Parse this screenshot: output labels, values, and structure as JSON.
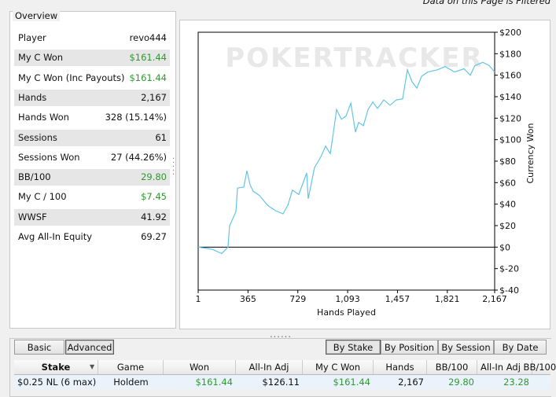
{
  "header_note": "Data on this Page is Filtered",
  "overview": {
    "title": "Overview",
    "value_color": "#2e9a2e",
    "rows": [
      {
        "label": "Player",
        "value": "revo444"
      },
      {
        "label": "My C Won",
        "value": "$161.44",
        "green": true
      },
      {
        "label": "My C Won (Inc Payouts)",
        "value": "$161.44",
        "green": true
      },
      {
        "label": "Hands",
        "value": "2,167"
      },
      {
        "label": "Hands Won",
        "value": "328 (15.14%)"
      },
      {
        "label": "Sessions",
        "value": "61"
      },
      {
        "label": "Sessions Won",
        "value": "27 (44.26%)"
      },
      {
        "label": "BB/100",
        "value": "29.80",
        "green": true
      },
      {
        "label": "My C / 100",
        "value": "$7.45",
        "green": true
      },
      {
        "label": "WWSF",
        "value": "41.92"
      },
      {
        "label": "Avg All-In Equity",
        "value": "69.27"
      }
    ]
  },
  "chart_data": {
    "type": "line",
    "watermark": "POKERTRACKER",
    "xlabel": "Hands Played",
    "ylabel": "Currency Won",
    "xlim": [
      1,
      2167
    ],
    "ylim": [
      -40,
      200
    ],
    "xticks": [
      1,
      365,
      729,
      {
        "value": 1093,
        "label": "1,093"
      },
      {
        "value": 1457,
        "label": "1,457"
      },
      {
        "value": 1821,
        "label": "1,821"
      },
      {
        "value": 2167,
        "label": "2,167"
      }
    ],
    "yticks": [
      {
        "value": 200,
        "label": "$200"
      },
      {
        "value": 180,
        "label": "$180"
      },
      {
        "value": 160,
        "label": "$160"
      },
      {
        "value": 140,
        "label": "$140"
      },
      {
        "value": 120,
        "label": "$120"
      },
      {
        "value": 100,
        "label": "$100"
      },
      {
        "value": 80,
        "label": "$80"
      },
      {
        "value": 60,
        "label": "$60"
      },
      {
        "value": 40,
        "label": "$40"
      },
      {
        "value": 20,
        "label": "$20"
      },
      {
        "value": 0,
        "label": "$0"
      },
      {
        "value": -20,
        "label": "$-20"
      },
      {
        "value": -40,
        "label": "$-40"
      }
    ],
    "x": [
      1,
      104,
      173,
      219,
      231,
      277,
      288,
      334,
      357,
      380,
      403,
      449,
      507,
      564,
      621,
      656,
      690,
      736,
      794,
      805,
      851,
      897,
      932,
      966,
      989,
      1012,
      1047,
      1081,
      1116,
      1150,
      1173,
      1208,
      1242,
      1277,
      1311,
      1357,
      1403,
      1449,
      1495,
      1529,
      1563,
      1598,
      1633,
      1679,
      1748,
      1805,
      1874,
      1943,
      1989,
      2023,
      2081,
      2127,
      2167
    ],
    "series": [
      {
        "color": "#63c5e6",
        "values": [
          0,
          -2,
          -6,
          0,
          20,
          33,
          55,
          56,
          71,
          58,
          52,
          48,
          39,
          34,
          31,
          39,
          53,
          49,
          69,
          45,
          74,
          84,
          94,
          87,
          107,
          128,
          119,
          122,
          134,
          107,
          116,
          113,
          128,
          135,
          129,
          137,
          132,
          137,
          138,
          165,
          154,
          148,
          159,
          163,
          165,
          168,
          163,
          166,
          160,
          169,
          172,
          169,
          163
        ]
      }
    ]
  },
  "view_buttons": {
    "items": [
      "Basic",
      "Advanced"
    ],
    "selected": 1
  },
  "tabs": {
    "items": [
      "By Stake",
      "By Position",
      "By Session",
      "By Date"
    ],
    "selected": 0
  },
  "table": {
    "header": [
      "Stake",
      "Game",
      "Won",
      "All-In Adj",
      "My C Won",
      "Hands",
      "BB/100",
      "All-In Adj BB/100"
    ],
    "green_columns": [
      2,
      4,
      6,
      7
    ],
    "rows": [
      [
        "$0.25 NL (6 max)",
        "Holdem",
        "$161.44",
        "$126.11",
        "$161.44",
        "2,167",
        "29.80",
        "23.28"
      ]
    ]
  }
}
